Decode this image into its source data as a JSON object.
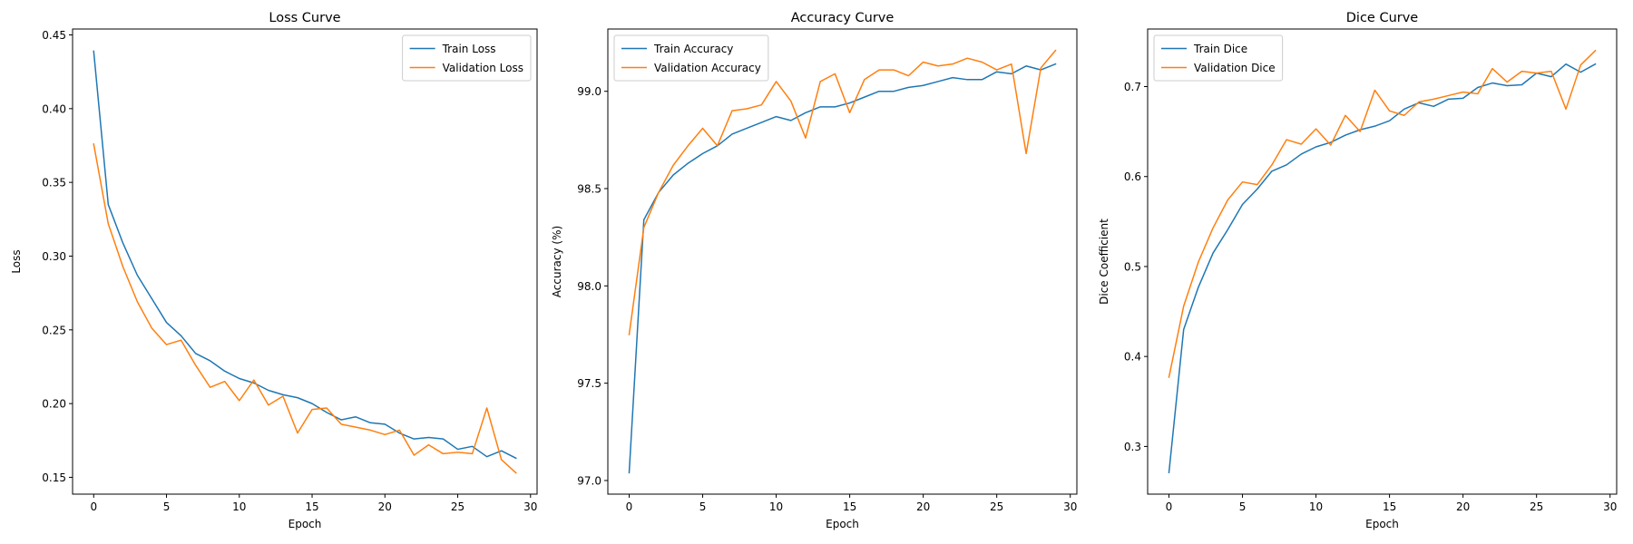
{
  "chart_data": [
    {
      "type": "line",
      "title": "Loss Curve",
      "xlabel": "Epoch",
      "ylabel": "Loss",
      "xlim": [
        -1.45,
        30.45
      ],
      "ylim": [
        0.1386,
        0.454
      ],
      "xticks": [
        0,
        5,
        10,
        15,
        20,
        25,
        30
      ],
      "yticks": [
        0.15,
        0.2,
        0.25,
        0.3,
        0.35,
        0.4,
        0.45
      ],
      "ytick_labels": [
        "0.15",
        "0.20",
        "0.25",
        "0.30",
        "0.35",
        "0.40",
        "0.45"
      ],
      "legend_position": "upper right",
      "grid": false,
      "x": [
        0,
        1,
        2,
        3,
        4,
        5,
        6,
        7,
        8,
        9,
        10,
        11,
        12,
        13,
        14,
        15,
        16,
        17,
        18,
        19,
        20,
        21,
        22,
        23,
        24,
        25,
        26,
        27,
        28,
        29
      ],
      "series": [
        {
          "name": "Train Loss",
          "color": "#1f77b4",
          "values": [
            0.439,
            0.335,
            0.309,
            0.287,
            0.271,
            0.255,
            0.246,
            0.234,
            0.229,
            0.222,
            0.217,
            0.214,
            0.209,
            0.206,
            0.204,
            0.2,
            0.194,
            0.189,
            0.191,
            0.187,
            0.186,
            0.18,
            0.176,
            0.177,
            0.176,
            0.169,
            0.171,
            0.164,
            0.168,
            0.163
          ]
        },
        {
          "name": "Validation Loss",
          "color": "#ff7f0e",
          "values": [
            0.376,
            0.322,
            0.293,
            0.269,
            0.251,
            0.24,
            0.243,
            0.226,
            0.211,
            0.215,
            0.202,
            0.216,
            0.199,
            0.205,
            0.18,
            0.196,
            0.197,
            0.186,
            0.184,
            0.182,
            0.179,
            0.182,
            0.165,
            0.172,
            0.166,
            0.167,
            0.166,
            0.197,
            0.162,
            0.153
          ]
        }
      ]
    },
    {
      "type": "line",
      "title": "Accuracy Curve",
      "xlabel": "Epoch",
      "ylabel": "Accuracy (%)",
      "xlim": [
        -1.45,
        30.45
      ],
      "ylim": [
        96.93,
        99.32
      ],
      "xticks": [
        0,
        5,
        10,
        15,
        20,
        25,
        30
      ],
      "yticks": [
        97.0,
        97.5,
        98.0,
        98.5,
        99.0
      ],
      "ytick_labels": [
        "97.0",
        "97.5",
        "98.0",
        "98.5",
        "99.0"
      ],
      "legend_position": "upper left",
      "grid": false,
      "x": [
        0,
        1,
        2,
        3,
        4,
        5,
        6,
        7,
        8,
        9,
        10,
        11,
        12,
        13,
        14,
        15,
        16,
        17,
        18,
        19,
        20,
        21,
        22,
        23,
        24,
        25,
        26,
        27,
        28,
        29
      ],
      "series": [
        {
          "name": "Train Accuracy",
          "color": "#1f77b4",
          "values": [
            97.04,
            98.34,
            98.48,
            98.57,
            98.63,
            98.68,
            98.72,
            98.78,
            98.81,
            98.84,
            98.87,
            98.85,
            98.89,
            98.92,
            98.92,
            98.94,
            98.97,
            99.0,
            99.0,
            99.02,
            99.03,
            99.05,
            99.07,
            99.06,
            99.06,
            99.1,
            99.09,
            99.13,
            99.11,
            99.14
          ]
        },
        {
          "name": "Validation Accuracy",
          "color": "#ff7f0e",
          "values": [
            97.75,
            98.3,
            98.48,
            98.62,
            98.72,
            98.81,
            98.72,
            98.9,
            98.91,
            98.93,
            99.05,
            98.95,
            98.76,
            99.05,
            99.09,
            98.89,
            99.06,
            99.11,
            99.11,
            99.08,
            99.15,
            99.13,
            99.14,
            99.17,
            99.15,
            99.11,
            99.14,
            98.68,
            99.12,
            99.21
          ]
        }
      ]
    },
    {
      "type": "line",
      "title": "Dice Curve",
      "xlabel": "Epoch",
      "ylabel": "Dice Coefficient",
      "xlim": [
        -1.45,
        30.45
      ],
      "ylim": [
        0.247,
        0.764
      ],
      "xticks": [
        0,
        5,
        10,
        15,
        20,
        25,
        30
      ],
      "yticks": [
        0.3,
        0.4,
        0.5,
        0.6,
        0.7
      ],
      "ytick_labels": [
        "0.3",
        "0.4",
        "0.5",
        "0.6",
        "0.7"
      ],
      "legend_position": "upper left",
      "grid": false,
      "x": [
        0,
        1,
        2,
        3,
        4,
        5,
        6,
        7,
        8,
        9,
        10,
        11,
        12,
        13,
        14,
        15,
        16,
        17,
        18,
        19,
        20,
        21,
        22,
        23,
        24,
        25,
        26,
        27,
        28,
        29
      ],
      "series": [
        {
          "name": "Train Dice",
          "color": "#1f77b4",
          "values": [
            0.271,
            0.43,
            0.477,
            0.515,
            0.541,
            0.569,
            0.586,
            0.606,
            0.613,
            0.625,
            0.633,
            0.638,
            0.646,
            0.652,
            0.656,
            0.662,
            0.675,
            0.682,
            0.678,
            0.686,
            0.687,
            0.699,
            0.704,
            0.701,
            0.702,
            0.715,
            0.711,
            0.725,
            0.716,
            0.725
          ]
        },
        {
          "name": "Validation Dice",
          "color": "#ff7f0e",
          "values": [
            0.377,
            0.456,
            0.505,
            0.543,
            0.574,
            0.594,
            0.591,
            0.613,
            0.641,
            0.636,
            0.653,
            0.635,
            0.668,
            0.65,
            0.696,
            0.673,
            0.668,
            0.683,
            0.686,
            0.69,
            0.694,
            0.692,
            0.72,
            0.705,
            0.717,
            0.715,
            0.717,
            0.675,
            0.724,
            0.74
          ]
        }
      ]
    }
  ]
}
